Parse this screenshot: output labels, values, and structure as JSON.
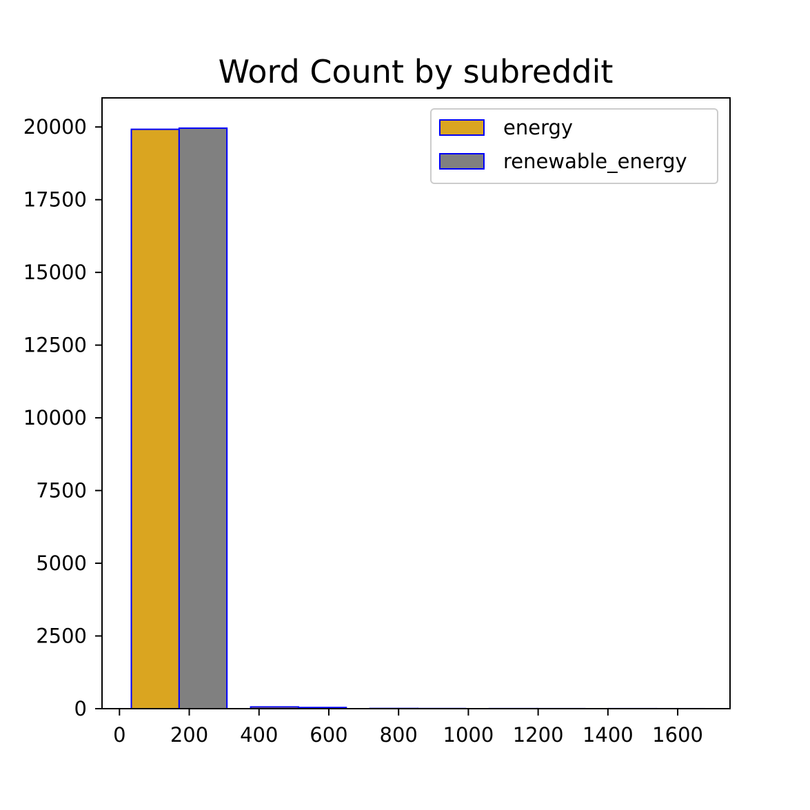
{
  "chart_data": {
    "type": "bar",
    "title": "Word Count by subreddit",
    "xlabel": "",
    "ylabel": "",
    "xlim": [
      -50,
      1750
    ],
    "ylim": [
      0,
      21000
    ],
    "xticks": [
      0,
      200,
      400,
      600,
      800,
      1000,
      1200,
      1400,
      1600
    ],
    "xtick_labels": [
      "0",
      "200",
      "400",
      "600",
      "800",
      "1000",
      "1200",
      "1400",
      "1600"
    ],
    "yticks": [
      0,
      2500,
      5000,
      7500,
      10000,
      12500,
      15000,
      17500,
      20000
    ],
    "ytick_labels": [
      "0",
      "2500",
      "5000",
      "7500",
      "10000",
      "12500",
      "15000",
      "17500",
      "20000"
    ],
    "legend_position": "top-right",
    "edge_color": "#0000ff",
    "series": [
      {
        "name": "energy",
        "color": "#daa520",
        "bars": [
          {
            "x0": 34,
            "x1": 171,
            "value": 19920
          },
          {
            "x0": 376,
            "x1": 513,
            "value": 60
          },
          {
            "x0": 718,
            "x1": 855,
            "value": 8
          },
          {
            "x0": 1060,
            "x1": 1197,
            "value": 3
          },
          {
            "x0": 1402,
            "x1": 1539,
            "value": 2
          }
        ]
      },
      {
        "name": "renewable_energy",
        "color": "#808080",
        "bars": [
          {
            "x0": 171,
            "x1": 308,
            "value": 19960
          },
          {
            "x0": 513,
            "x1": 650,
            "value": 40
          },
          {
            "x0": 855,
            "x1": 992,
            "value": 5
          },
          {
            "x0": 1197,
            "x1": 1334,
            "value": 2
          },
          {
            "x0": 1539,
            "x1": 1676,
            "value": 1
          }
        ]
      }
    ]
  }
}
